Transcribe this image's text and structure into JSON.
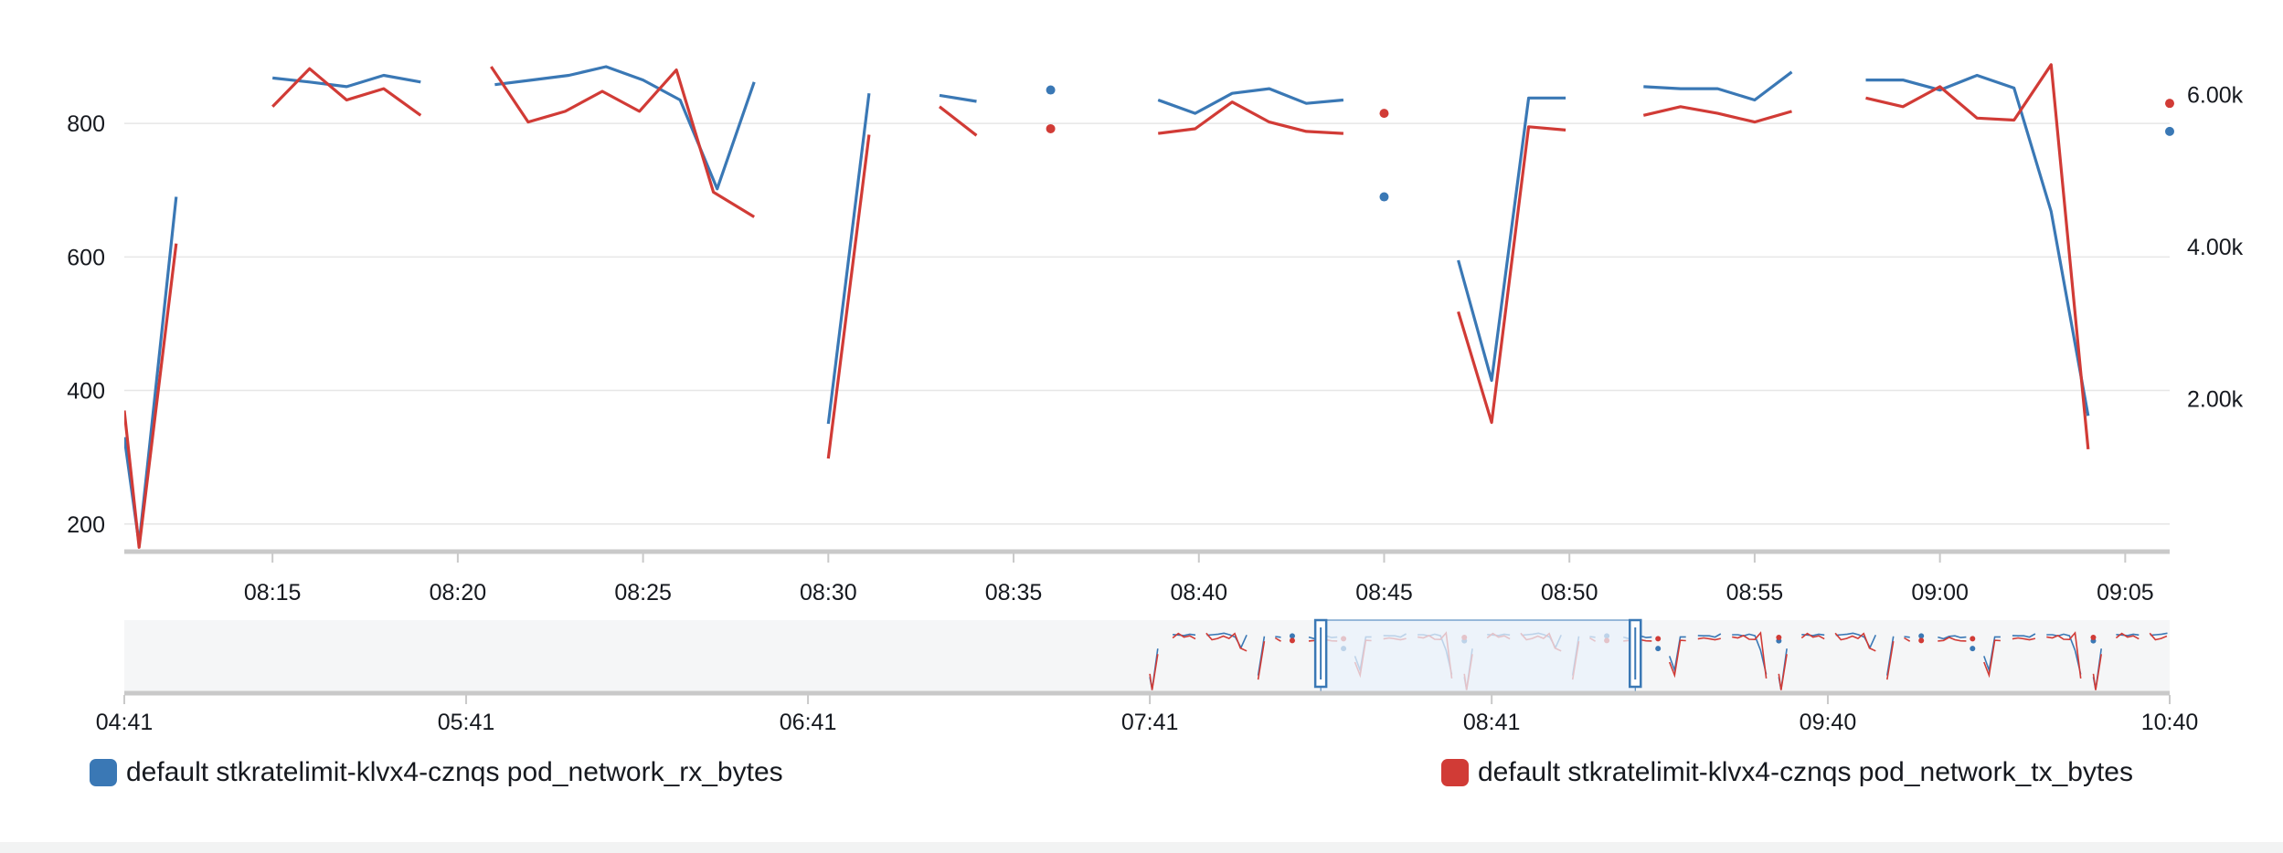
{
  "colors": {
    "rx": "#3a78b5",
    "tx": "#d13b36",
    "grid": "#e6e6e6",
    "axis": "#c9c9c9",
    "navigator_bg": "#f5f6f7",
    "brush_fill": "#eaf2fb",
    "brush_stroke": "#3a78b5"
  },
  "chart_data": {
    "type": "line",
    "x_ticks": [
      "08:15",
      "08:20",
      "08:25",
      "08:30",
      "08:35",
      "08:40",
      "08:45",
      "08:50",
      "08:55",
      "09:00",
      "09:05"
    ],
    "y_left_ticks": [
      "200",
      "400",
      "600",
      "800"
    ],
    "y_right_ticks": [
      "2.00k",
      "4.00k",
      "6.00k"
    ],
    "y_left_range": [
      160,
      900
    ],
    "y_right_range": [
      0,
      6500
    ],
    "x_range_minutes": [
      "08:11",
      "09:06.2"
    ],
    "grid": true,
    "legend_placement": "bottom",
    "series": [
      {
        "name": "default stkratelimit-klvx4-cznqs pod_network_rx_bytes",
        "axis": "left",
        "segments": [
          [
            [
              "08:11",
              330
            ],
            [
              "08:11.4",
              170
            ],
            [
              "08:12.4",
              690
            ]
          ],
          [
            [
              "08:15",
              868
            ],
            [
              "08:16",
              862
            ],
            [
              "08:17",
              855
            ],
            [
              "08:18",
              872
            ],
            [
              "08:19",
              862
            ]
          ],
          [
            [
              "08:21",
              858
            ],
            [
              "08:22",
              865
            ],
            [
              "08:23",
              872
            ],
            [
              "08:24",
              885
            ],
            [
              "08:25",
              865
            ],
            [
              "08:26",
              835
            ],
            [
              "08:27",
              702
            ],
            [
              "08:28",
              862
            ]
          ],
          [
            [
              "08:30",
              350
            ],
            [
              "08:31.1",
              845
            ]
          ],
          [
            [
              "08:33",
              842
            ],
            [
              "08:34",
              833
            ]
          ],
          [
            [
              "08:36",
              850
            ]
          ],
          [
            [
              "08:38.9",
              835
            ],
            [
              "08:39.9",
              815
            ],
            [
              "08:40.9",
              845
            ],
            [
              "08:41.9",
              852
            ],
            [
              "08:42.9",
              830
            ],
            [
              "08:43.9",
              835
            ]
          ],
          [
            [
              "08:45",
              690
            ]
          ],
          [
            [
              "08:47",
              595
            ],
            [
              "08:47.9",
              415
            ],
            [
              "08:48.9",
              838
            ],
            [
              "08:49.9",
              838
            ]
          ],
          [
            [
              "08:52",
              855
            ],
            [
              "08:53",
              852
            ],
            [
              "08:54",
              852
            ],
            [
              "08:55",
              835
            ],
            [
              "08:56",
              877
            ]
          ],
          [
            [
              "08:58",
              865
            ],
            [
              "08:59",
              865
            ],
            [
              "09:00",
              850
            ],
            [
              "09:01",
              872
            ],
            [
              "09:02",
              853
            ],
            [
              "09:03",
              668
            ],
            [
              "09:04",
              362
            ]
          ],
          [
            [
              "09:06.2",
              788
            ]
          ]
        ]
      },
      {
        "name": "default stkratelimit-klvx4-cznqs pod_network_tx_bytes",
        "axis": "left",
        "segments": [
          [
            [
              "08:11",
              370
            ],
            [
              "08:11.4",
              165
            ],
            [
              "08:12.4",
              620
            ]
          ],
          [
            [
              "08:15",
              825
            ],
            [
              "08:16",
              882
            ],
            [
              "08:17",
              835
            ],
            [
              "08:18",
              852
            ],
            [
              "08:19",
              812
            ]
          ],
          [
            [
              "08:20.9",
              885
            ],
            [
              "08:21.9",
              802
            ],
            [
              "08:22.9",
              818
            ],
            [
              "08:23.9",
              848
            ],
            [
              "08:24.9",
              818
            ],
            [
              "08:25.9",
              880
            ],
            [
              "08:26.9",
              697
            ],
            [
              "08:28",
              660
            ]
          ],
          [
            [
              "08:30",
              298
            ],
            [
              "08:31.1",
              783
            ]
          ],
          [
            [
              "08:33",
              825
            ],
            [
              "08:34",
              782
            ]
          ],
          [
            [
              "08:36",
              792
            ]
          ],
          [
            [
              "08:38.9",
              785
            ],
            [
              "08:39.9",
              792
            ],
            [
              "08:40.9",
              832
            ],
            [
              "08:41.9",
              802
            ],
            [
              "08:42.9",
              788
            ],
            [
              "08:43.9",
              785
            ]
          ],
          [
            [
              "08:45",
              815
            ]
          ],
          [
            [
              "08:47",
              518
            ],
            [
              "08:47.9",
              352
            ],
            [
              "08:48.9",
              795
            ],
            [
              "08:49.9",
              790
            ]
          ],
          [
            [
              "08:52",
              812
            ],
            [
              "08:53",
              825
            ],
            [
              "08:54",
              815
            ],
            [
              "08:55",
              802
            ],
            [
              "08:56",
              818
            ]
          ],
          [
            [
              "08:58",
              838
            ],
            [
              "08:59",
              825
            ],
            [
              "09:00",
              855
            ],
            [
              "09:01",
              808
            ],
            [
              "09:02",
              805
            ],
            [
              "09:03",
              888
            ],
            [
              "09:04",
              312
            ]
          ],
          [
            [
              "09:06.2",
              830
            ]
          ]
        ]
      }
    ],
    "navigator": {
      "x_ticks": [
        "04:41",
        "05:41",
        "06:41",
        "07:41",
        "08:41",
        "09:40",
        "10:40"
      ],
      "range": [
        "04:41",
        "10:40"
      ],
      "selection": [
        "08:11",
        "09:06.2"
      ]
    }
  },
  "legend": {
    "rx_label": "default stkratelimit-klvx4-cznqs pod_network_rx_bytes",
    "tx_label": "default stkratelimit-klvx4-cznqs pod_network_tx_bytes"
  }
}
